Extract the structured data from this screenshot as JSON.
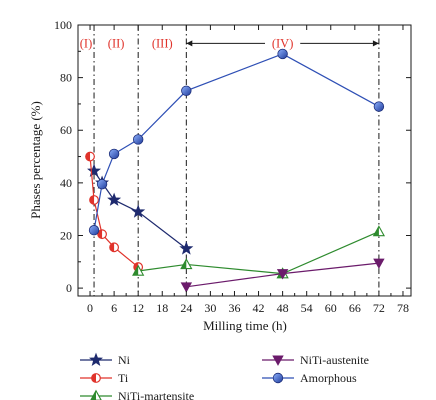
{
  "chart_data": {
    "type": "line",
    "xlabel": "Milling time (h)",
    "ylabel": "Phases percentage (%)",
    "xlim": [
      -3,
      80
    ],
    "ylim": [
      -3,
      100
    ],
    "xticks": [
      0,
      6,
      12,
      18,
      24,
      30,
      36,
      42,
      48,
      54,
      60,
      66,
      72,
      78
    ],
    "xtick_labels": [
      "0",
      "6",
      "12",
      "18",
      "24",
      "30",
      "36",
      "42",
      "48",
      "54",
      "60",
      "66",
      "72",
      "78"
    ],
    "yticks": [
      0,
      20,
      40,
      60,
      80,
      100
    ],
    "ytick_labels": [
      "0",
      "20",
      "40",
      "60",
      "80",
      "100"
    ],
    "stage_boundaries": [
      1,
      12,
      24,
      72
    ],
    "stages": [
      {
        "label": "(I)",
        "from": -3,
        "to": 1
      },
      {
        "label": "(II)",
        "from": 1,
        "to": 12
      },
      {
        "label": "(III)",
        "from": 12,
        "to": 24
      },
      {
        "label": "(IV)",
        "from": 24,
        "to": 72
      }
    ],
    "series": [
      {
        "name": "Ni",
        "color": "#1e2a6e",
        "marker": "star",
        "x": [
          1,
          3,
          6,
          12,
          24
        ],
        "y": [
          44.5,
          40,
          33.5,
          29,
          15
        ]
      },
      {
        "name": "Ti",
        "color": "#e0332b",
        "marker": "half-circle",
        "x": [
          0,
          1,
          3,
          6,
          12
        ],
        "y": [
          50,
          33.5,
          20.5,
          15.5,
          8
        ]
      },
      {
        "name": "NiTi-martensite",
        "color": "#2e8b2e",
        "marker": "triangle-up",
        "x": [
          12,
          24,
          48,
          72
        ],
        "y": [
          6.5,
          9,
          5.5,
          21.5
        ]
      },
      {
        "name": "NiTi-austenite",
        "color": "#6b1b6b",
        "marker": "triangle-down",
        "x": [
          24,
          48,
          72
        ],
        "y": [
          0.5,
          5.5,
          9.5
        ]
      },
      {
        "name": "Amorphous",
        "color": "#2e4fb5",
        "marker": "circle",
        "x": [
          1,
          3,
          6,
          12,
          24,
          48,
          72
        ],
        "y": [
          22,
          39.5,
          51,
          56.5,
          75,
          89,
          69
        ]
      }
    ],
    "legend_placement": "bottom"
  }
}
